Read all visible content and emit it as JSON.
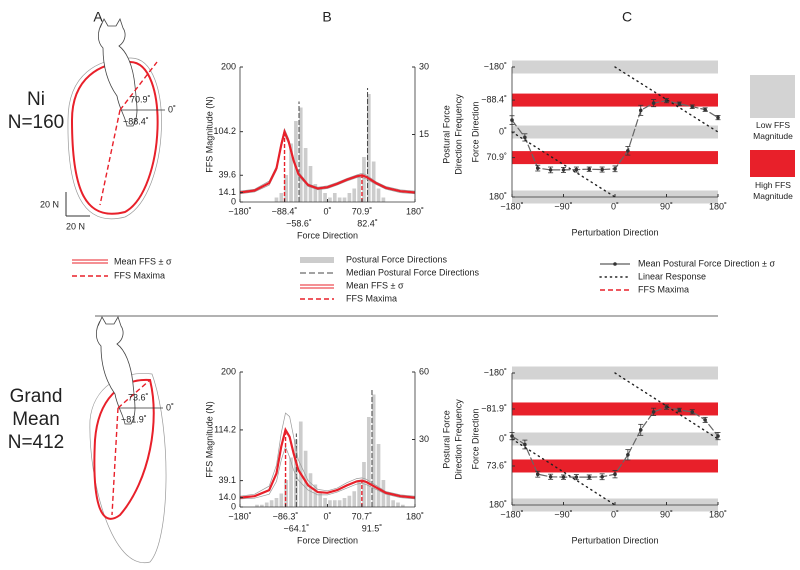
{
  "figure": {
    "panels": [
      "A",
      "B",
      "C"
    ],
    "rows": [
      {
        "label": "Ni",
        "n": "N=160"
      },
      {
        "label": "Grand Mean",
        "n": "N=412"
      }
    ],
    "panel_a": [
      {
        "labels": [
          "70.9˚",
          "0˚",
          "−88.4˚"
        ]
      },
      {
        "labels": [
          "73.6˚",
          "0˚",
          "−81.9˚"
        ]
      }
    ],
    "scale": [
      "20 N",
      "20 N"
    ],
    "legend_a": [
      "Mean FFS ± σ",
      "FFS Maxima"
    ],
    "legend_c_extra": "FFS Maxima"
  },
  "chart_data": [
    {
      "type": "combo",
      "xlabel": "Force Direction",
      "ylabel": "FFS Magnitude (N)",
      "y2label": [
        "Postural Force",
        "Direction Frequency"
      ],
      "xlim": [
        -180,
        180
      ],
      "xticks": [
        {
          "value": -180,
          "label": "−180˚"
        },
        {
          "value": -88.4,
          "label": "−88.4˚"
        },
        {
          "value": 0,
          "label": "0˚"
        },
        {
          "value": 70.9,
          "label": "70.9˚"
        },
        {
          "value": 180,
          "label": "180˚"
        }
      ],
      "ylim": [
        0,
        200
      ],
      "yticks": [
        0,
        14.1,
        39.6,
        104.2,
        200
      ],
      "y2lim": [
        0,
        30
      ],
      "y2ticks": [
        15,
        30
      ],
      "histogram": {
        "name": "Postural Force Directions",
        "color": "#cccccc",
        "axis": "y2",
        "bins": [
          -180,
          -170,
          -160,
          -150,
          -140,
          -130,
          -120,
          -110,
          -100,
          -90,
          -80,
          -70,
          -60,
          -50,
          -40,
          -30,
          -20,
          -10,
          0,
          10,
          20,
          30,
          40,
          50,
          60,
          70,
          80,
          90,
          100,
          110,
          120,
          130,
          140,
          150,
          160,
          170,
          180
        ],
        "counts": [
          0,
          0,
          0,
          0,
          0,
          0,
          0,
          1,
          2,
          6,
          13,
          18,
          21,
          12,
          8,
          4,
          3,
          2,
          1,
          2,
          1,
          1,
          2,
          3,
          6,
          10,
          24,
          9,
          3,
          1,
          0,
          0,
          0,
          0,
          0,
          0
        ]
      },
      "medians": {
        "name": "Median Postural Force Directions",
        "color": "#444444",
        "values": [
          -58.6,
          82.4
        ],
        "value_labels": [
          "−58.6˚",
          "82.4˚"
        ]
      },
      "mean": {
        "name": "Mean FFS ± σ",
        "color": "#e8202a",
        "x": [
          -180,
          -150,
          -120,
          -105,
          -95,
          -88.4,
          -80,
          -70,
          -60,
          -40,
          -20,
          0,
          20,
          40,
          60,
          70.9,
          80,
          100,
          120,
          150,
          180
        ],
        "values": [
          14.1,
          17,
          28,
          50,
          85,
          104.2,
          90,
          62,
          42,
          25,
          20,
          22,
          27,
          33,
          38,
          39.6,
          37,
          28,
          21,
          16,
          14.1
        ],
        "sd": [
          2,
          2,
          3,
          3,
          4,
          4,
          4,
          3,
          3,
          2,
          2,
          2,
          2,
          2,
          2,
          3,
          3,
          2,
          2,
          2,
          2
        ]
      },
      "maxima": {
        "name": "FFS Maxima",
        "color": "#e8202a",
        "x": [
          -88.4,
          70.9
        ],
        "values": [
          104.2,
          39.6
        ]
      }
    },
    {
      "type": "line",
      "xlabel": "Perturbation Direction",
      "ylabel": "Force Direction",
      "xlim": [
        -180,
        180
      ],
      "xticks": [
        {
          "value": -180,
          "label": "−180˚"
        },
        {
          "value": -90,
          "label": "−90˚"
        },
        {
          "value": 0,
          "label": "0˚"
        },
        {
          "value": 90,
          "label": "90˚"
        },
        {
          "value": 180,
          "label": "180˚"
        }
      ],
      "ylim": [
        -180,
        180
      ],
      "invert_y": true,
      "yticks": [
        {
          "value": -180,
          "label": "−180˚"
        },
        {
          "value": -88.4,
          "label": "−88.4˚"
        },
        {
          "value": 0,
          "label": "0˚"
        },
        {
          "value": 70.9,
          "label": "70.9˚"
        },
        {
          "value": 180,
          "label": "180˚"
        }
      ],
      "bands": [
        {
          "name": "Low FFS Magnitude",
          "color": "#d3d3d3",
          "values": [
            -180,
            0,
            180
          ]
        },
        {
          "name": "High FFS Magnitude",
          "color": "#e8202a",
          "values": [
            -88.4,
            70.9
          ]
        }
      ],
      "series": [
        {
          "name": "Mean Postural Force Direction ± σ",
          "color": "#333333",
          "x": [
            -180,
            -157.5,
            -135,
            -112.5,
            -90,
            -67.5,
            -45,
            -22.5,
            0,
            22.5,
            45,
            67.5,
            90,
            112.5,
            135,
            157.5,
            180
          ],
          "values": [
            -33,
            15,
            100,
            105,
            105,
            104,
            103,
            104,
            102,
            52,
            -60,
            -80,
            -87,
            -78,
            -70,
            -62,
            -40
          ],
          "errors": [
            12,
            10,
            8,
            8,
            7,
            7,
            6,
            7,
            8,
            12,
            14,
            10,
            6,
            5,
            5,
            5,
            6
          ]
        },
        {
          "name": "Linear Response",
          "color": "#222222",
          "style": "dotted",
          "x": [
            -180,
            0,
            0,
            0,
            180
          ],
          "values": [
            0,
            180,
            null,
            -180,
            0
          ]
        }
      ]
    },
    {
      "type": "combo",
      "xlabel": "Force Direction",
      "ylabel": "FFS Magnitude (N)",
      "y2label": [
        "Postural Force",
        "Direction Frequency"
      ],
      "xlim": [
        -180,
        180
      ],
      "xticks": [
        {
          "value": -180,
          "label": "−180˚"
        },
        {
          "value": -86.3,
          "label": "−86.3˚"
        },
        {
          "value": 0,
          "label": "0˚"
        },
        {
          "value": 70.7,
          "label": "70.7˚"
        },
        {
          "value": 180,
          "label": "180˚"
        }
      ],
      "ylim": [
        0,
        200
      ],
      "yticks": [
        0,
        {
          "value": 14,
          "label": "14.0"
        },
        39.1,
        114.2,
        200
      ],
      "y2lim": [
        0,
        60
      ],
      "y2ticks": [
        30,
        60
      ],
      "histogram": {
        "color": "#cccccc",
        "axis": "y2",
        "bins": [
          -180,
          -170,
          -160,
          -150,
          -140,
          -130,
          -120,
          -110,
          -100,
          -90,
          -80,
          -70,
          -60,
          -50,
          -40,
          -30,
          -20,
          -10,
          0,
          10,
          20,
          30,
          40,
          50,
          60,
          70,
          80,
          90,
          100,
          110,
          120,
          130,
          140,
          150,
          160,
          170,
          180
        ],
        "counts": [
          0,
          0,
          0,
          1,
          1,
          2,
          3,
          4,
          6,
          12,
          22,
          30,
          38,
          25,
          15,
          10,
          6,
          4,
          3,
          3,
          3,
          4,
          5,
          7,
          12,
          20,
          40,
          50,
          28,
          12,
          6,
          3,
          2,
          1,
          0,
          0
        ]
      },
      "medians": {
        "color": "#444444",
        "values": [
          -64.1,
          91.5
        ],
        "value_labels": [
          "−64.1˚",
          "91.5˚"
        ]
      },
      "mean": {
        "color": "#e8202a",
        "x": [
          -180,
          -150,
          -120,
          -105,
          -95,
          -86.3,
          -78,
          -70,
          -60,
          -40,
          -20,
          0,
          20,
          40,
          60,
          70.7,
          80,
          100,
          120,
          150,
          180
        ],
        "values": [
          14,
          16,
          25,
          50,
          90,
          114.2,
          104,
          80,
          55,
          32,
          22,
          21,
          25,
          32,
          38,
          39.1,
          37,
          29,
          21,
          16,
          14
        ],
        "sd": [
          2,
          3,
          6,
          12,
          20,
          25,
          30,
          25,
          15,
          7,
          4,
          3,
          3,
          4,
          4,
          4,
          4,
          3,
          2,
          2,
          2
        ]
      },
      "maxima": {
        "color": "#e8202a",
        "x": [
          -86.3,
          70.7
        ],
        "values": [
          114.2,
          39.1
        ]
      }
    },
    {
      "type": "line",
      "xlabel": "Perturbation Direction",
      "ylabel": "Force Direction",
      "xlim": [
        -180,
        180
      ],
      "xticks": [
        {
          "value": -180,
          "label": "−180˚"
        },
        {
          "value": -90,
          "label": "−90˚"
        },
        {
          "value": 0,
          "label": "0˚"
        },
        {
          "value": 90,
          "label": "90˚"
        },
        {
          "value": 180,
          "label": "180˚"
        }
      ],
      "ylim": [
        -180,
        180
      ],
      "invert_y": true,
      "yticks": [
        {
          "value": -180,
          "label": "−180˚"
        },
        {
          "value": -81.9,
          "label": "−81.9˚"
        },
        {
          "value": 0,
          "label": "0˚"
        },
        {
          "value": 73.6,
          "label": "73.6˚"
        },
        {
          "value": 180,
          "label": "180˚"
        }
      ],
      "bands": [
        {
          "color": "#d3d3d3",
          "values": [
            -180,
            0,
            180
          ]
        },
        {
          "color": "#e8202a",
          "values": [
            -81.9,
            73.6
          ]
        }
      ],
      "series": [
        {
          "color": "#333333",
          "x": [
            -180,
            -157.5,
            -135,
            -112.5,
            -90,
            -67.5,
            -45,
            -22.5,
            0,
            22.5,
            45,
            67.5,
            90,
            112.5,
            135,
            157.5,
            180
          ],
          "values": [
            -8,
            15,
            96,
            103,
            104,
            104,
            104,
            103,
            96,
            43,
            -25,
            -74,
            -87,
            -79,
            -74,
            -52,
            -8
          ],
          "errors": [
            10,
            12,
            8,
            7,
            6,
            7,
            6,
            8,
            10,
            14,
            15,
            10,
            6,
            5,
            6,
            7,
            10
          ]
        },
        {
          "color": "#222222",
          "style": "dotted",
          "x": [
            -180,
            0,
            0,
            0,
            180
          ],
          "values": [
            0,
            180,
            null,
            -180,
            0
          ]
        }
      ]
    }
  ]
}
